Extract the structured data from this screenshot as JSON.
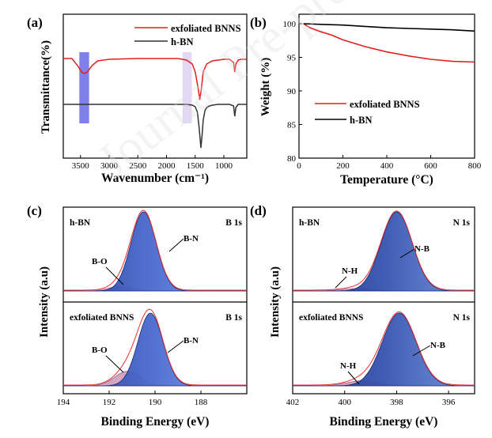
{
  "panels": {
    "a": {
      "label": "(a)"
    },
    "b": {
      "label": "(b)"
    },
    "c": {
      "label": "(c)"
    },
    "d": {
      "label": "(d)"
    }
  },
  "watermark": {
    "text": "Journal Pre-proof"
  },
  "chart_data": [
    {
      "panel": "a",
      "type": "line",
      "xlabel": "Wavenumber (cm⁻¹)",
      "ylabel": "Transmittance(%)",
      "xlim": [
        3800,
        600
      ],
      "xticks": [
        3500,
        3000,
        2500,
        2000,
        1500,
        1000
      ],
      "highlight_bands": [
        {
          "from": 3520,
          "to": 3350,
          "color": "#6a6ae8"
        },
        {
          "from": 1720,
          "to": 1560,
          "color": "#d7c8f0"
        }
      ],
      "series": [
        {
          "name": "exfoliated BNNS",
          "color": "#e02020",
          "x": [
            3800,
            3650,
            3550,
            3480,
            3430,
            3380,
            3300,
            3200,
            3000,
            2500,
            2000,
            1800,
            1650,
            1550,
            1500,
            1450,
            1420,
            1390,
            1360,
            1300,
            1200,
            1100,
            1000,
            900,
            830,
            810,
            790,
            750,
            700,
            600
          ],
          "y": [
            -3,
            -3,
            -12,
            -20,
            -22,
            -20,
            -12,
            -6,
            -4,
            -3,
            -3,
            -3,
            -5,
            -10,
            -20,
            -40,
            -55,
            -40,
            -20,
            -10,
            -6,
            -5,
            -4,
            -4,
            -8,
            -20,
            -10,
            -5,
            -4,
            -4
          ]
        },
        {
          "name": "h-BN",
          "color": "#333333",
          "x": [
            3800,
            3500,
            3000,
            2500,
            2000,
            1800,
            1650,
            1550,
            1500,
            1460,
            1430,
            1400,
            1380,
            1360,
            1330,
            1300,
            1250,
            1200,
            1100,
            1000,
            900,
            830,
            810,
            790,
            750,
            700,
            600
          ],
          "y": [
            -60,
            -60,
            -60,
            -60,
            -60,
            -60,
            -60,
            -61,
            -63,
            -70,
            -90,
            -115,
            -100,
            -80,
            -68,
            -64,
            -62,
            -61,
            -60,
            -60,
            -60,
            -62,
            -75,
            -64,
            -60,
            -60,
            -60
          ]
        }
      ]
    },
    {
      "panel": "b",
      "type": "line",
      "xlabel": "Temperature (°C)",
      "ylabel": "Weight (%)",
      "xlim": [
        0,
        800
      ],
      "ylim": [
        80,
        100
      ],
      "xticks": [
        0,
        200,
        400,
        600,
        800
      ],
      "yticks": [
        80,
        85,
        90,
        95,
        100
      ],
      "series": [
        {
          "name": "exfoliated BNNS",
          "color": "#e02020",
          "x": [
            20,
            50,
            100,
            150,
            200,
            300,
            400,
            500,
            600,
            700,
            800
          ],
          "y": [
            100,
            99.4,
            98.8,
            98.3,
            97.6,
            96.6,
            95.8,
            95.2,
            94.7,
            94.4,
            94.3
          ]
        },
        {
          "name": "h-BN",
          "color": "#000000",
          "x": [
            20,
            100,
            200,
            300,
            400,
            500,
            600,
            700,
            800
          ],
          "y": [
            100,
            99.9,
            99.8,
            99.6,
            99.4,
            99.3,
            99.2,
            99.1,
            98.9
          ]
        }
      ]
    },
    {
      "panel": "c",
      "type": "area",
      "xlabel": "Binding Energy (eV)",
      "ylabel": "Intensity (a.u)",
      "xlim": [
        194,
        186
      ],
      "xticks": [
        194,
        192,
        190,
        188
      ],
      "subplots": [
        {
          "sample": "h-BN",
          "region": "B 1s",
          "peaks": [
            {
              "name": "B-N",
              "center": 190.5,
              "height": 1.0,
              "width": 0.55,
              "color": "#3a5bb8"
            },
            {
              "name": "B-O",
              "center": 191.5,
              "height": 0.06,
              "width": 0.5,
              "color": "#c48ab0"
            }
          ]
        },
        {
          "sample": "exfoliated BNNS",
          "region": "B 1s",
          "peaks": [
            {
              "name": "B-N",
              "center": 190.2,
              "height": 1.0,
              "width": 0.55,
              "color": "#3a5bb8"
            },
            {
              "name": "B-O",
              "center": 191.2,
              "height": 0.2,
              "width": 0.55,
              "color": "#c48ab0"
            }
          ]
        }
      ]
    },
    {
      "panel": "d",
      "type": "area",
      "xlabel": "Binding Energy (eV)",
      "ylabel": "Intensity (a.u)",
      "xlim": [
        402,
        395
      ],
      "xticks": [
        402,
        400,
        398,
        396
      ],
      "subplots": [
        {
          "sample": "h-BN",
          "region": "N 1s",
          "peaks": [
            {
              "name": "N-B",
              "center": 398.0,
              "height": 1.0,
              "width": 0.6,
              "color": "#2c4a9e"
            },
            {
              "name": "N-H",
              "center": 399.5,
              "height": 0.03,
              "width": 0.6,
              "color": "#c48ab0"
            }
          ]
        },
        {
          "sample": "exfoliated BNNS",
          "region": "N 1s",
          "peaks": [
            {
              "name": "N-B",
              "center": 397.9,
              "height": 1.0,
              "width": 0.65,
              "color": "#2c4a9e"
            },
            {
              "name": "N-H",
              "center": 399.3,
              "height": 0.07,
              "width": 0.6,
              "color": "#c48ab0"
            }
          ]
        }
      ]
    }
  ]
}
